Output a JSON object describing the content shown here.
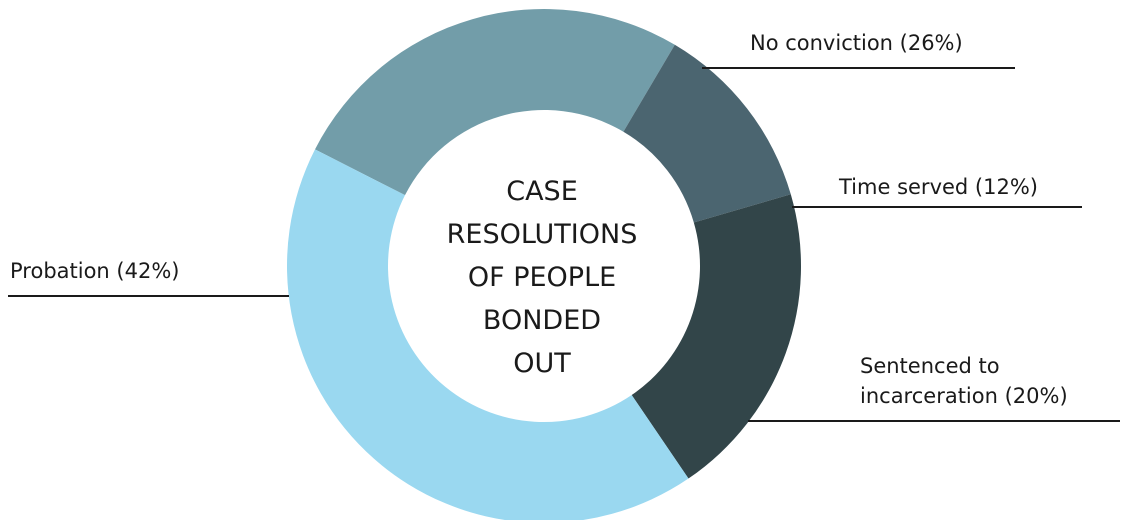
{
  "chart_data": {
    "type": "pie",
    "variant": "donut",
    "title": "CASE RESOLUTIONS OF PEOPLE BONDED OUT",
    "title_lines": [
      "CASE",
      "RESOLUTIONS",
      "OF PEOPLE",
      "BONDED",
      "OUT"
    ],
    "slices": [
      {
        "name": "No conviction",
        "value": 26,
        "label_lines": [
          "No conviction (26%)"
        ],
        "color": "#729da9"
      },
      {
        "name": "Time served",
        "value": 12,
        "label_lines": [
          "Time served (12%)"
        ],
        "color": "#4b6570"
      },
      {
        "name": "Sentenced to incarceration",
        "value": 20,
        "label_lines": [
          "Sentenced to",
          "incarceration (20%)"
        ],
        "color": "#324549"
      },
      {
        "name": "Probation",
        "value": 42,
        "label_lines": [
          "Probation (42%)"
        ],
        "color": "#9ad8f0"
      }
    ],
    "legend": "none"
  }
}
